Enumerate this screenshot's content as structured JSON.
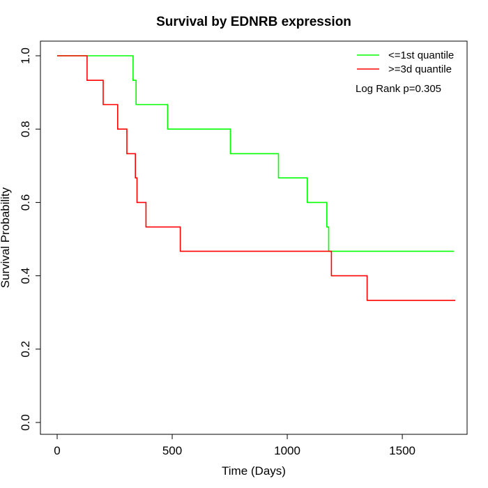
{
  "chart_data": {
    "type": "line",
    "title": "Survival by EDNRB expression",
    "xlabel": "Time (Days)",
    "ylabel": "Survival Probability",
    "xlim": [
      0,
      1730
    ],
    "ylim": [
      0,
      1
    ],
    "x_ticks": [
      0,
      500,
      1000,
      1500
    ],
    "y_ticks": [
      0.0,
      0.2,
      0.4,
      0.6,
      0.8,
      1.0
    ],
    "y_tick_labels": [
      "0.0",
      "0.2",
      "0.4",
      "0.6",
      "0.8",
      "1.0"
    ],
    "x_tick_labels": [
      "0",
      "500",
      "1000",
      "1500"
    ],
    "grid": false,
    "legend_position": "top-right",
    "annotation": "Log Rank p=0.305",
    "series": [
      {
        "name": "<=1st quantile",
        "color": "#00ff00",
        "step": true,
        "points": [
          [
            0,
            1.0
          ],
          [
            330,
            1.0
          ],
          [
            330,
            0.933
          ],
          [
            343,
            0.933
          ],
          [
            343,
            0.867
          ],
          [
            480,
            0.867
          ],
          [
            480,
            0.8
          ],
          [
            753,
            0.8
          ],
          [
            753,
            0.733
          ],
          [
            962,
            0.733
          ],
          [
            962,
            0.667
          ],
          [
            1087,
            0.667
          ],
          [
            1087,
            0.6
          ],
          [
            1172,
            0.6
          ],
          [
            1172,
            0.533
          ],
          [
            1180,
            0.533
          ],
          [
            1180,
            0.467
          ],
          [
            1725,
            0.467
          ]
        ]
      },
      {
        "name": ">=3d quantile",
        "color": "#ff0000",
        "step": true,
        "points": [
          [
            0,
            1.0
          ],
          [
            130,
            1.0
          ],
          [
            130,
            0.933
          ],
          [
            200,
            0.933
          ],
          [
            200,
            0.867
          ],
          [
            263,
            0.867
          ],
          [
            263,
            0.8
          ],
          [
            303,
            0.8
          ],
          [
            303,
            0.733
          ],
          [
            340,
            0.733
          ],
          [
            340,
            0.667
          ],
          [
            347,
            0.667
          ],
          [
            347,
            0.6
          ],
          [
            386,
            0.6
          ],
          [
            386,
            0.533
          ],
          [
            535,
            0.533
          ],
          [
            535,
            0.467
          ],
          [
            1192,
            0.467
          ],
          [
            1192,
            0.4
          ],
          [
            1347,
            0.4
          ],
          [
            1347,
            0.333
          ],
          [
            1730,
            0.333
          ]
        ]
      }
    ]
  }
}
